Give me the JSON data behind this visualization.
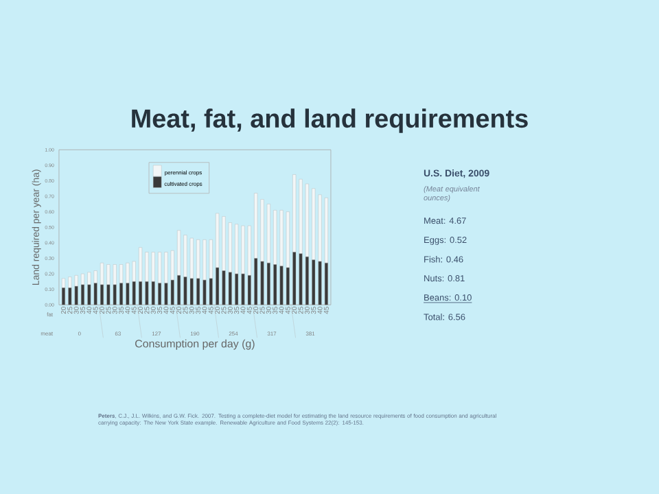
{
  "chart_data": {
    "type": "bar",
    "stacked": true,
    "title": "Meat, fat, and land requirements",
    "xlabel": "Consumption per day (g)",
    "ylabel": "Land required per year (ha)",
    "categories": [
      "20",
      "25",
      "30",
      "35",
      "40",
      "45",
      "20",
      "25",
      "30",
      "35",
      "40",
      "45",
      "20",
      "25",
      "30",
      "35",
      "40",
      "45",
      "20",
      "25",
      "30",
      "35",
      "40",
      "45",
      "20",
      "25",
      "30",
      "35",
      "40",
      "45",
      "20",
      "25",
      "30",
      "35",
      "40",
      "45",
      "20",
      "25",
      "30",
      "35",
      "40",
      "45"
    ],
    "series": [
      {
        "name": "cultivated crops",
        "color": "#3a3a3a",
        "values": [
          0.11,
          0.11,
          0.12,
          0.13,
          0.13,
          0.14,
          0.13,
          0.13,
          0.13,
          0.14,
          0.14,
          0.15,
          0.15,
          0.15,
          0.15,
          0.14,
          0.14,
          0.16,
          0.19,
          0.18,
          0.17,
          0.17,
          0.16,
          0.17,
          0.24,
          0.22,
          0.21,
          0.2,
          0.2,
          0.19,
          0.3,
          0.28,
          0.27,
          0.26,
          0.25,
          0.24,
          0.34,
          0.33,
          0.31,
          0.29,
          0.28,
          0.27
        ]
      },
      {
        "name": "perennial crops",
        "color": "#f2f6f7",
        "values": [
          0.06,
          0.07,
          0.07,
          0.07,
          0.08,
          0.08,
          0.14,
          0.13,
          0.13,
          0.12,
          0.13,
          0.13,
          0.22,
          0.19,
          0.19,
          0.2,
          0.2,
          0.19,
          0.29,
          0.27,
          0.26,
          0.25,
          0.26,
          0.25,
          0.35,
          0.35,
          0.32,
          0.32,
          0.31,
          0.32,
          0.42,
          0.4,
          0.38,
          0.35,
          0.36,
          0.36,
          0.5,
          0.48,
          0.47,
          0.46,
          0.43,
          0.42
        ]
      }
    ],
    "ylim": [
      0,
      1
    ],
    "yticks": [
      {
        "value": 0,
        "label": "0.00"
      },
      {
        "value": 0.1,
        "label": "0.10"
      },
      {
        "value": 0.2,
        "label": "0.20"
      },
      {
        "value": 0.3,
        "label": "0.30"
      },
      {
        "value": 0.4,
        "label": "0.40"
      },
      {
        "value": 0.5,
        "label": "0.50"
      },
      {
        "value": 0.6,
        "label": "0.60"
      },
      {
        "value": 0.7,
        "label": "0.70"
      },
      {
        "value": 0.8,
        "label": "0.80"
      },
      {
        "value": 0.9,
        "label": "0.90"
      },
      {
        "value": 1,
        "label": "1.00"
      }
    ],
    "legend": "top left",
    "annotations": [
      "fat",
      "meat",
      "0",
      "63",
      "127",
      "190",
      "254",
      "317",
      "381",
      "U.S. Diet, 2009",
      "(Meat equivalent ounces)",
      "Meat: 4.67",
      "Eggs: 0.52",
      "Fish: 0.46",
      "Nuts: 0.81",
      "Beans: 0.10",
      "Total: 6.56",
      "**Peters**, C.J., J.L. Wilkins, and G.W. Fick. 2007. Testing a complete-diet model for estimating the land resource requirements of food consumption and agricultural carrying capacity: The New York State example. Renewable Agriculture and Food Systems 22(2): 145-153."
    ]
  }
}
